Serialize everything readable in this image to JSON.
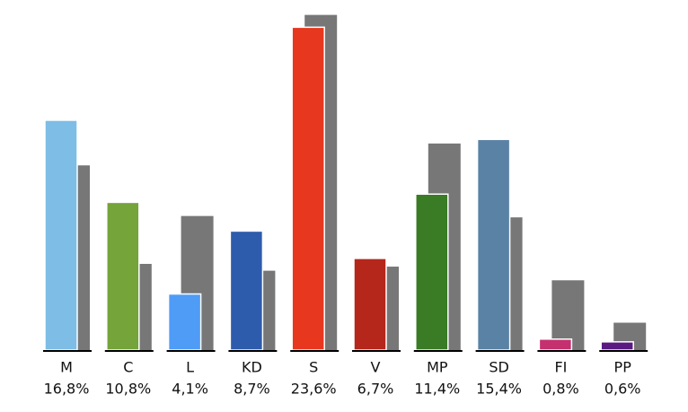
{
  "chart_data": {
    "type": "bar",
    "categories": [
      "M",
      "C",
      "L",
      "KD",
      "S",
      "V",
      "MP",
      "SD",
      "FI",
      "PP"
    ],
    "series": [
      {
        "colors": [
          "#7dbde6",
          "#74a43a",
          "#4f9cf7",
          "#2e5cac",
          "#e8371f",
          "#b5261b",
          "#3a7b25",
          "#5a82a4",
          "#c5306e",
          "#5a1a82"
        ],
        "values": [
          16.8,
          10.8,
          4.1,
          8.7,
          23.6,
          6.7,
          11.4,
          15.4,
          0.8,
          0.6
        ],
        "value_labels": [
          "16,8%",
          "10,8%",
          "4,1%",
          "8,7%",
          "23,6%",
          "6,7%",
          "11,4%",
          "15,4%",
          "0,8%",
          "0,6%"
        ]
      },
      {
        "color": "#777777",
        "values": [
          13.5,
          6.3,
          9.8,
          5.8,
          24.5,
          6.1,
          15.1,
          9.7,
          5.1,
          2.0
        ]
      }
    ],
    "ylim": [
      0,
      25
    ]
  }
}
